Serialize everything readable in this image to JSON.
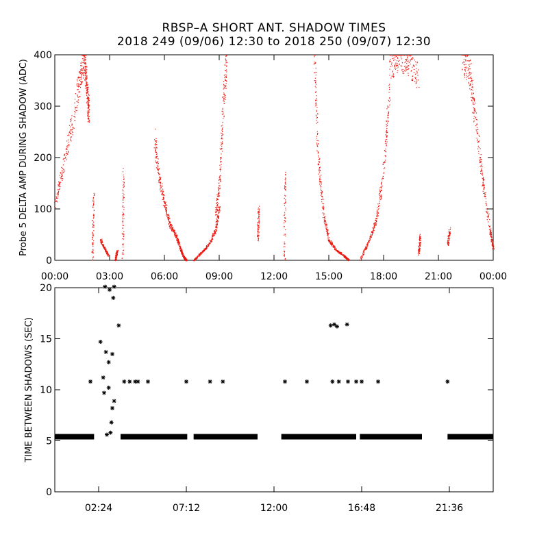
{
  "title": {
    "line1": "RBSP–A SHORT ANT. SHADOW TIMES",
    "line2": "2018 249 (09/06) 12:30 to 2018 250 (09/07) 12:30"
  },
  "chart_data": [
    {
      "type": "scatter",
      "ylabel": "Probe 5 DELTA AMP DURING SHADOW (ADC)",
      "xlim_hours": [
        0,
        24
      ],
      "ylim": [
        0,
        400
      ],
      "x_ticks": [
        "00:00",
        "03:00",
        "06:00",
        "09:00",
        "12:00",
        "15:00",
        "18:00",
        "21:00",
        "00:00"
      ],
      "x_tick_hours": [
        0,
        3,
        6,
        9,
        12,
        15,
        18,
        21,
        24
      ],
      "y_ticks": [
        0,
        100,
        200,
        300,
        400
      ],
      "marker": "dot",
      "color": "#e8170f",
      "series": [
        {
          "segments": [
            {
              "x": [
                0.0,
                0.5,
                1.0,
                1.4,
                1.6
              ],
              "y": [
                110,
                190,
                280,
                360,
                400
              ]
            },
            {
              "x": [
                1.6,
                1.7,
                1.8,
                1.85
              ],
              "y": [
                400,
                360,
                310,
                280
              ]
            },
            {
              "x": [
                2.05,
                2.1
              ],
              "y": [
                0,
                130
              ]
            },
            {
              "x": [
                2.5,
                2.7,
                2.9
              ],
              "y": [
                40,
                25,
                10
              ]
            },
            {
              "x": [
                3.3,
                3.4
              ],
              "y": [
                0,
                20
              ]
            },
            {
              "x": [
                3.7,
                3.75
              ],
              "y": [
                0,
                170
              ]
            },
            {
              "x": [
                5.45,
                5.7,
                6.0,
                6.3,
                6.6
              ],
              "y": [
                240,
                160,
                110,
                70,
                50
              ]
            },
            {
              "x": [
                6.6,
                6.8,
                7.0,
                7.2
              ],
              "y": [
                50,
                30,
                10,
                0
              ]
            },
            {
              "x": [
                7.6,
                8.0,
                8.4,
                8.8,
                9.0
              ],
              "y": [
                0,
                15,
                30,
                60,
                110
              ]
            },
            {
              "x": [
                8.8,
                9.0,
                9.2,
                9.4
              ],
              "y": [
                90,
                150,
                300,
                400
              ]
            },
            {
              "x": [
                11.1,
                11.15
              ],
              "y": [
                40,
                100
              ]
            },
            {
              "x": [
                12.55,
                12.6
              ],
              "y": [
                0,
                170
              ]
            },
            {
              "x": [
                14.2,
                14.4,
                14.7,
                15.0
              ],
              "y": [
                400,
                200,
                90,
                40
              ]
            },
            {
              "x": [
                15.0,
                15.4,
                15.8,
                16.1
              ],
              "y": [
                40,
                20,
                10,
                0
              ]
            },
            {
              "x": [
                16.7,
                17.2,
                17.6,
                18.0,
                18.3
              ],
              "y": [
                0,
                40,
                80,
                180,
                330
              ]
            },
            {
              "x": [
                18.3,
                18.8,
                19.3,
                19.9
              ],
              "y": [
                380,
                400,
                390,
                360
              ]
            },
            {
              "x": [
                19.9,
                20.0
              ],
              "y": [
                10,
                50
              ]
            },
            {
              "x": [
                21.5,
                21.6
              ],
              "y": [
                30,
                60
              ]
            },
            {
              "x": [
                22.3,
                22.7,
                23.0,
                23.4,
                23.8,
                24.0
              ],
              "y": [
                400,
                370,
                280,
                160,
                60,
                20
              ]
            }
          ]
        }
      ]
    },
    {
      "type": "scatter",
      "ylabel": "TIME BETWEEN SHADOWS (SEC)",
      "xlim_hours": [
        0,
        24
      ],
      "ylim": [
        0,
        20
      ],
      "x_ticks": [
        "02:24",
        "07:12",
        "12:00",
        "16:48",
        "21:36"
      ],
      "x_tick_hours": [
        2.4,
        7.2,
        12.0,
        16.8,
        21.6
      ],
      "y_ticks": [
        0,
        5,
        10,
        15,
        20
      ],
      "marker": "asterisk",
      "color": "#000000",
      "series": [
        {
          "baseline_value": 5.4,
          "baseline_ranges_hours": [
            [
              0.0,
              2.15
            ],
            [
              3.6,
              7.25
            ],
            [
              7.6,
              11.1
            ],
            [
              12.4,
              16.5
            ],
            [
              16.7,
              20.1
            ],
            [
              21.5,
              24.0
            ]
          ],
          "points": [
            [
              1.95,
              10.8
            ],
            [
              2.5,
              14.7
            ],
            [
              2.65,
              11.2
            ],
            [
              2.75,
              20.1
            ],
            [
              2.8,
              13.7
            ],
            [
              2.7,
              9.7
            ],
            [
              2.85,
              5.6
            ],
            [
              2.95,
              12.7
            ],
            [
              3.0,
              19.8
            ],
            [
              2.95,
              10.2
            ],
            [
              3.05,
              5.8
            ],
            [
              3.1,
              6.8
            ],
            [
              3.15,
              8.2
            ],
            [
              3.15,
              13.5
            ],
            [
              3.2,
              19.0
            ],
            [
              3.25,
              20.1
            ],
            [
              3.25,
              8.9
            ],
            [
              3.5,
              16.3
            ],
            [
              3.8,
              10.8
            ],
            [
              4.1,
              10.8
            ],
            [
              4.4,
              10.8
            ],
            [
              4.55,
              10.8
            ],
            [
              5.1,
              10.8
            ],
            [
              7.2,
              10.8
            ],
            [
              8.5,
              10.8
            ],
            [
              9.2,
              10.8
            ],
            [
              12.6,
              10.8
            ],
            [
              13.8,
              10.8
            ],
            [
              15.1,
              16.3
            ],
            [
              15.3,
              16.4
            ],
            [
              15.45,
              16.2
            ],
            [
              15.2,
              10.8
            ],
            [
              15.55,
              10.8
            ],
            [
              16.0,
              16.4
            ],
            [
              16.05,
              10.8
            ],
            [
              16.5,
              10.8
            ],
            [
              16.8,
              10.8
            ],
            [
              17.7,
              10.8
            ],
            [
              21.5,
              10.8
            ]
          ]
        }
      ]
    }
  ]
}
